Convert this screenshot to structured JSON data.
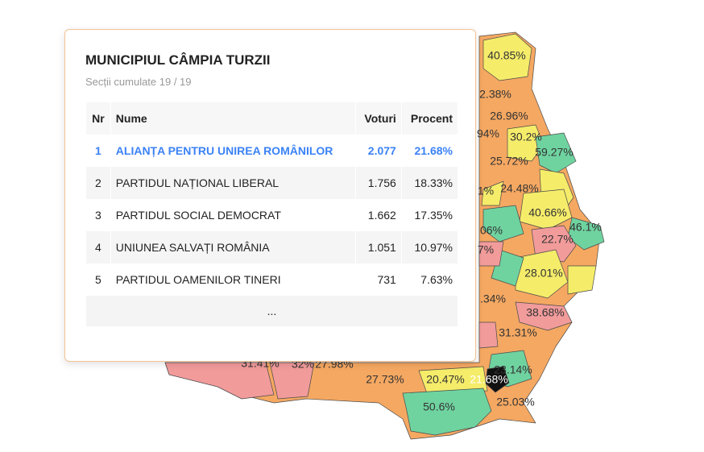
{
  "popup": {
    "title": "MUNICIPIUL CÂMPIA TURZII",
    "subtitle": "Secții cumulate 19 / 19",
    "table": {
      "header": [
        "Nr",
        "Nume",
        "Voturi",
        "Procent"
      ],
      "rows": [
        [
          "1",
          "ALIANȚA PENTRU UNIREA ROMÂNILOR",
          "2.077",
          "21.68%"
        ],
        [
          "2",
          "PARTIDUL NAȚIONAL LIBERAL",
          "1.756",
          "18.33%"
        ],
        [
          "3",
          "PARTIDUL SOCIAL DEMOCRAT",
          "1.662",
          "17.35%"
        ],
        [
          "4",
          "UNIUNEA SALVAȚI ROMÂNIA",
          "1.051",
          "10.97%"
        ],
        [
          "5",
          "PARTIDUL OAMENILOR TINERI",
          "731",
          "7.63%"
        ]
      ],
      "more": "..."
    }
  },
  "map": {
    "labels": [
      "40.85%",
      "2.38%",
      "26.96%",
      "30.2%",
      "59.27%",
      "94%",
      "25.72%",
      "1%",
      "24.48%",
      "40.66%",
      "46.1%",
      "06%",
      "22.7%",
      "7%",
      "28.01%",
      ".34%",
      "38.68%",
      "31.31%",
      "31.41%",
      "32%",
      "27.98%",
      "27.73%",
      "20.47%",
      "21.68%",
      "23.14%",
      "50.6%",
      "25.03%"
    ]
  }
}
